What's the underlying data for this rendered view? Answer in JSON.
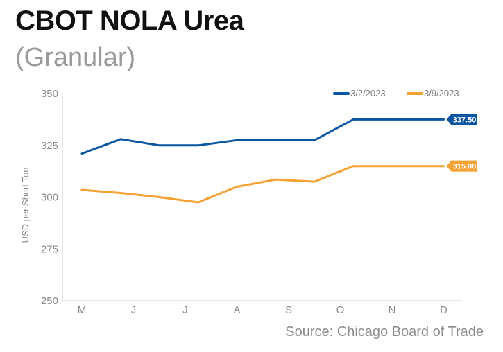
{
  "title": "CBOT NOLA Urea",
  "subtitle": "(Granular)",
  "source": "Source: Chicago Board of Trade",
  "chart_data": {
    "type": "line",
    "categories": [
      "M",
      "J",
      "J",
      "A",
      "S",
      "O",
      "N",
      "D"
    ],
    "x": [
      0,
      0.75,
      1.5,
      2.25,
      3,
      3.75,
      4.5,
      5.25,
      6,
      6.75,
      7
    ],
    "series": [
      {
        "name": "3/2/2023",
        "color": "#0b56a0",
        "values": [
          321,
          328,
          325,
          325,
          327.5,
          327.5,
          327.5,
          337.5,
          337.5,
          337.5,
          337.5
        ],
        "end_label": "337.50"
      },
      {
        "name": "3/9/2023",
        "color": "#f4a233",
        "values": [
          303.5,
          302,
          300,
          297.5,
          305,
          308.5,
          307.5,
          315,
          315,
          315,
          315
        ],
        "end_label": "315.00"
      }
    ],
    "ylabel": "USD per Short Ton",
    "ylim": [
      250,
      350
    ],
    "yticks": [
      250,
      275,
      300,
      325,
      350
    ],
    "legend_position": "top-right",
    "grid": false
  }
}
